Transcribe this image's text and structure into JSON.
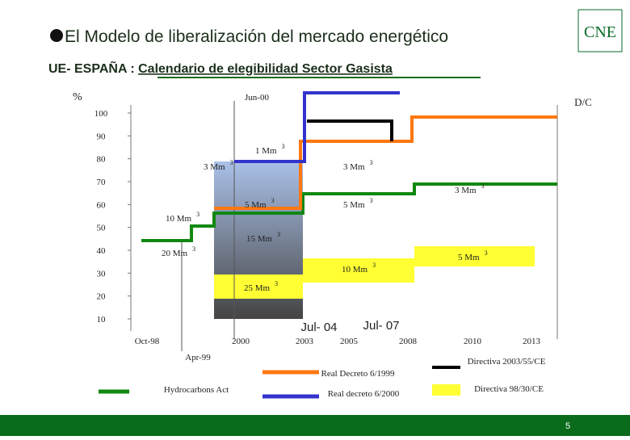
{
  "header": {
    "title": "El Modelo de liberalización del mercado energético",
    "subtitle_prefix": "UE- ESPAÑA : ",
    "subtitle": "Calendario de elegibilidad Sector Gasista",
    "logo": "CNE"
  },
  "chart": {
    "y_unit": "%",
    "ylim": [
      10,
      100
    ],
    "yticks": [
      10,
      20,
      30,
      40,
      50,
      60,
      70,
      80,
      90,
      100
    ],
    "corner_label": "D/C",
    "top_label": "Jun-00",
    "x_labels": [
      "Oct-98",
      "Apr-99",
      "2000",
      "2003",
      "2005",
      "2008",
      "2010",
      "2013"
    ],
    "big_labels": [
      "Jul- 04",
      "Jul- 07"
    ],
    "annotations": [
      {
        "text": "1 Mm",
        "sup": "3"
      },
      {
        "text": "3 Mm",
        "sup": "3"
      },
      {
        "text": "3 Mm",
        "sup": "3"
      },
      {
        "text": "5 Mm",
        "sup": "3"
      },
      {
        "text": "5 Mm",
        "sup": "3"
      },
      {
        "text": "3 Mm",
        "sup": "3"
      },
      {
        "text": "10 Mm",
        "sup": "3"
      },
      {
        "text": "15 Mm",
        "sup": "3"
      },
      {
        "text": "20 Mm",
        "sup": "3"
      },
      {
        "text": "5 Mm",
        "sup": "3"
      },
      {
        "text": "10 Mm",
        "sup": "3"
      },
      {
        "text": "25 Mm",
        "sup": "3"
      }
    ]
  },
  "legend": [
    "Hydrocarbons Act",
    "Real Decreto 6/1999",
    "Real decreto 6/2000",
    "Directiva 2003/55/CE",
    "Directiva 98/30/CE"
  ],
  "footer": {
    "page": "5"
  }
}
